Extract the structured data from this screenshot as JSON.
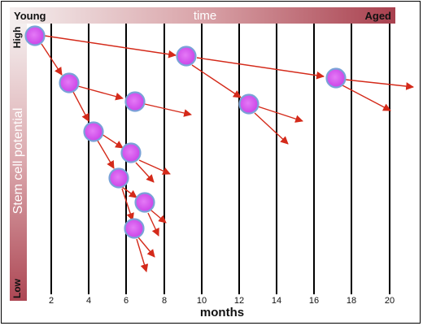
{
  "top_bar": {
    "left_label": "Young",
    "center_label": "time",
    "right_label": "Aged"
  },
  "side_bar": {
    "top_label": "High",
    "center_label": "Stem cell potential",
    "bottom_label": "Low"
  },
  "x_axis": {
    "title": "months",
    "ticks": [
      "2",
      "4",
      "6",
      "8",
      "10",
      "12",
      "14",
      "16",
      "18",
      "20"
    ]
  },
  "colors": {
    "gradient_light": "#f2ecec",
    "gradient_dark": "#b04a57",
    "cell_fill": "#d858f0",
    "cell_border": "#7aa2d8",
    "arrow": "#d42a1a",
    "gridline": "#000000"
  }
}
